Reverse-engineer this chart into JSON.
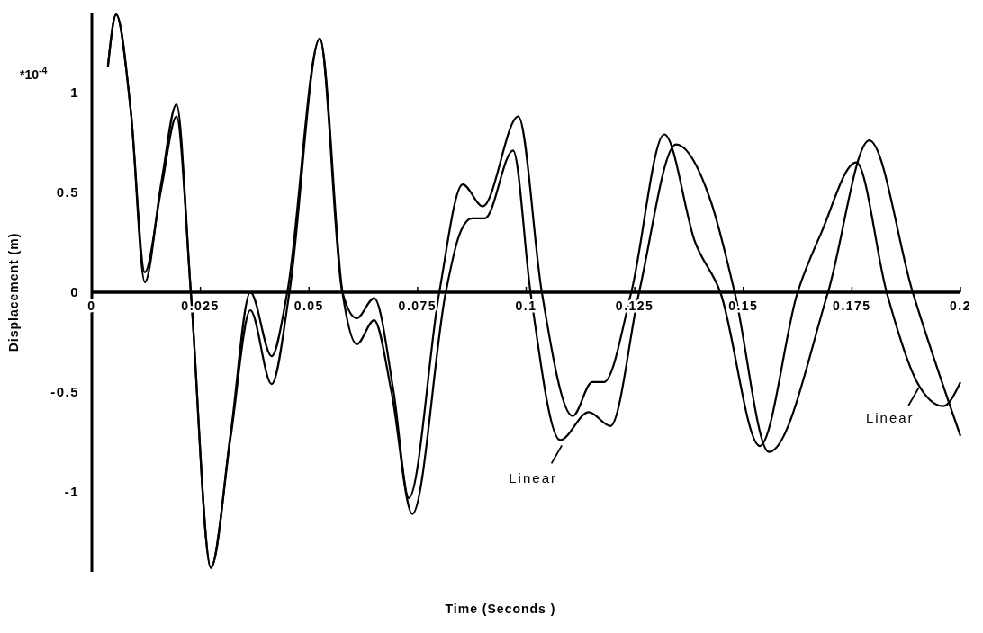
{
  "chart_data": {
    "type": "line",
    "xlabel": "Time (Seconds )",
    "ylabel": "Displacement (m)",
    "annotations": [
      "*10$^{-4}$",
      {
        "text": "Linear",
        "x": 0.1078,
        "y": -0.74
      },
      {
        "text": "Linear",
        "x": 0.19,
        "y": -0.45
      }
    ],
    "xlim": [
      0,
      0.2
    ],
    "ylim": [
      -1.4,
      1.4
    ],
    "xticks": [
      0,
      0.025,
      0.05,
      0.075,
      0.1,
      0.125,
      0.15,
      0.175,
      0.2
    ],
    "yticks": [
      -1,
      -0.5,
      0,
      0.5,
      1
    ],
    "grid": false,
    "marker": "none",
    "line_style": "solid",
    "series": [
      {
        "color": "#000000",
        "x": [
          0.0037,
          0.0056,
          0.009,
          0.0122,
          0.016,
          0.0195,
          0.0228,
          0.0274,
          0.032,
          0.0365,
          0.0414,
          0.045,
          0.0525,
          0.0577,
          0.061,
          0.065,
          0.0695,
          0.073,
          0.08,
          0.0854,
          0.09,
          0.0982,
          0.1036,
          0.1107,
          0.1152,
          0.1179,
          0.1242,
          0.1318,
          0.1389,
          0.1447,
          0.1538,
          0.1625,
          0.168,
          0.176,
          0.183,
          0.19,
          0.196,
          0.2
        ],
        "values": [
          1.13,
          1.39,
          0.9,
          0.05,
          0.55,
          0.94,
          0,
          -1.38,
          -0.7,
          0,
          -0.32,
          0,
          1.27,
          0,
          -0.13,
          -0.03,
          -0.5,
          -1.03,
          0,
          0.54,
          0.43,
          0.88,
          0,
          -0.62,
          -0.45,
          -0.45,
          0,
          0.79,
          0.25,
          0,
          -0.77,
          0,
          0.3,
          0.65,
          0,
          -0.45,
          -0.57,
          -0.45
        ]
      },
      {
        "color": "#000000",
        "x": [
          0.0037,
          0.0056,
          0.009,
          0.0122,
          0.016,
          0.0195,
          0.0228,
          0.0274,
          0.032,
          0.0365,
          0.0414,
          0.0455,
          0.0525,
          0.0577,
          0.061,
          0.065,
          0.069,
          0.0738,
          0.0815,
          0.0845,
          0.0875,
          0.0905,
          0.097,
          0.101,
          0.1078,
          0.1144,
          0.1194,
          0.126,
          0.1345,
          0.1426,
          0.148,
          0.1559,
          0.1695,
          0.179,
          0.189,
          0.2
        ],
        "values": [
          1.13,
          1.39,
          0.9,
          0.1,
          0.52,
          0.88,
          0,
          -1.38,
          -0.72,
          -0.09,
          -0.46,
          0,
          1.27,
          0,
          -0.26,
          -0.14,
          -0.5,
          -1.11,
          0,
          0.28,
          0.37,
          0.37,
          0.71,
          0,
          -0.74,
          -0.6,
          -0.67,
          0,
          0.74,
          0.45,
          0,
          -0.8,
          0,
          0.76,
          0,
          -0.72
        ]
      }
    ]
  }
}
